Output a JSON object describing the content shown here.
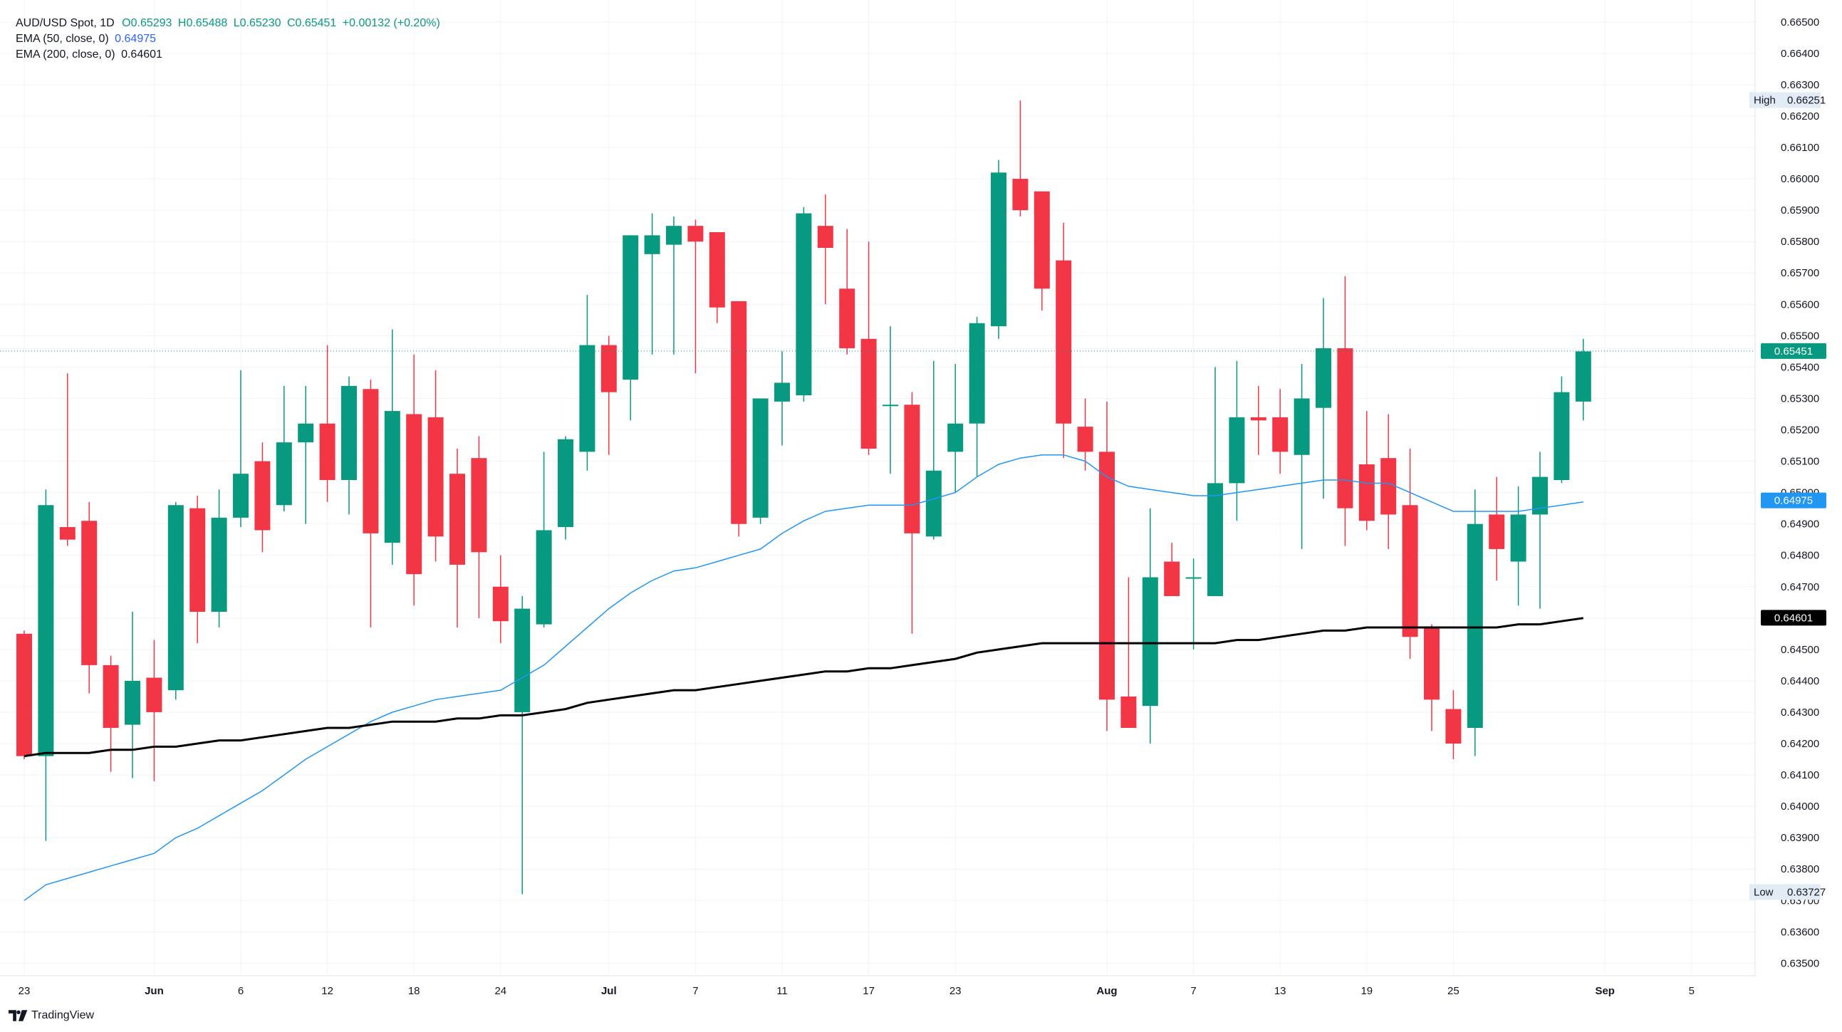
{
  "legend": {
    "symbol": "AUD/USD Spot, 1D",
    "open": "O0.65293",
    "high": "H0.65488",
    "low": "L0.65230",
    "close": "C0.65451",
    "change": "+0.00132 (+0.20%)",
    "ema50_label": "EMA (50, close, 0)",
    "ema50_value": "0.64975",
    "ema200_label": "EMA (200, close, 0)",
    "ema200_value": "0.64601"
  },
  "brand": "TradingView",
  "colors": {
    "up": "#089981",
    "down": "#f23645",
    "ema50": "#2196f3",
    "ema200": "#000000",
    "last_price": "#089981"
  },
  "chart_data": {
    "type": "candlestick",
    "x_tick_labels": [
      "23",
      "Jun",
      "6",
      "12",
      "18",
      "24",
      "Jul",
      "7",
      "11",
      "17",
      "23",
      "Aug",
      "7",
      "13",
      "19",
      "25",
      "Sep",
      "5"
    ],
    "x_tick_index": [
      0,
      6,
      10,
      14,
      18,
      22,
      27,
      31,
      35,
      39,
      43,
      50,
      54,
      58,
      62,
      66,
      73,
      77
    ],
    "y_ticks": [
      "0.66500",
      "0.66400",
      "0.66300",
      "0.66200",
      "0.66100",
      "0.66000",
      "0.65900",
      "0.65800",
      "0.65700",
      "0.65600",
      "0.65500",
      "0.65400",
      "0.65300",
      "0.65200",
      "0.65100",
      "0.65000",
      "0.64900",
      "0.64800",
      "0.64700",
      "0.64600",
      "0.64500",
      "0.64400",
      "0.64300",
      "0.64200",
      "0.64100",
      "0.64000",
      "0.63900",
      "0.63800",
      "0.63700",
      "0.63600",
      "0.63500"
    ],
    "ylim": [
      0.6346,
      0.6657
    ],
    "candles": [
      [
        0.6455,
        0.6456,
        0.6415,
        0.6416
      ],
      [
        0.6416,
        0.6501,
        0.6389,
        0.6496
      ],
      [
        0.6489,
        0.6538,
        0.6483,
        0.6485
      ],
      [
        0.6491,
        0.6497,
        0.6436,
        0.6445
      ],
      [
        0.6445,
        0.6448,
        0.6411,
        0.6425
      ],
      [
        0.6426,
        0.6462,
        0.6409,
        0.644
      ],
      [
        0.6441,
        0.6453,
        0.6408,
        0.643
      ],
      [
        0.6437,
        0.6497,
        0.6434,
        0.6496
      ],
      [
        0.6495,
        0.6499,
        0.6452,
        0.6462
      ],
      [
        0.6462,
        0.6501,
        0.6457,
        0.6492
      ],
      [
        0.6492,
        0.6539,
        0.6489,
        0.6506
      ],
      [
        0.651,
        0.6516,
        0.6481,
        0.6488
      ],
      [
        0.6496,
        0.6534,
        0.6494,
        0.6516
      ],
      [
        0.6516,
        0.6534,
        0.649,
        0.6522
      ],
      [
        0.6522,
        0.6547,
        0.6497,
        0.6504
      ],
      [
        0.6504,
        0.6537,
        0.6493,
        0.6534
      ],
      [
        0.6533,
        0.6536,
        0.6457,
        0.6487
      ],
      [
        0.6484,
        0.6552,
        0.6477,
        0.6526
      ],
      [
        0.6525,
        0.6544,
        0.6464,
        0.6474
      ],
      [
        0.6524,
        0.6539,
        0.6478,
        0.6486
      ],
      [
        0.6506,
        0.6514,
        0.6457,
        0.6477
      ],
      [
        0.6511,
        0.6518,
        0.646,
        0.6481
      ],
      [
        0.647,
        0.648,
        0.6452,
        0.6459
      ],
      [
        0.643,
        0.6467,
        0.6372,
        0.6463
      ],
      [
        0.6458,
        0.6513,
        0.6457,
        0.6488
      ],
      [
        0.6489,
        0.6518,
        0.6485,
        0.6517
      ],
      [
        0.6513,
        0.6563,
        0.6507,
        0.6547
      ],
      [
        0.6547,
        0.655,
        0.6512,
        0.6532
      ],
      [
        0.6536,
        0.6582,
        0.6523,
        0.6582
      ],
      [
        0.6576,
        0.6589,
        0.6544,
        0.6582
      ],
      [
        0.6579,
        0.6588,
        0.6544,
        0.6585
      ],
      [
        0.6585,
        0.6587,
        0.6538,
        0.658
      ],
      [
        0.6583,
        0.6583,
        0.6554,
        0.6559
      ],
      [
        0.6561,
        0.6561,
        0.6486,
        0.649
      ],
      [
        0.6492,
        0.653,
        0.649,
        0.653
      ],
      [
        0.6529,
        0.6545,
        0.6515,
        0.6535
      ],
      [
        0.6531,
        0.6591,
        0.6529,
        0.6589
      ],
      [
        0.6585,
        0.6595,
        0.656,
        0.6578
      ],
      [
        0.6565,
        0.6584,
        0.6544,
        0.6546
      ],
      [
        0.6549,
        0.658,
        0.6512,
        0.6514
      ],
      [
        0.6528,
        0.6553,
        0.6506,
        0.6528
      ],
      [
        0.6528,
        0.6532,
        0.6455,
        0.6487
      ],
      [
        0.6486,
        0.6542,
        0.6485,
        0.6507
      ],
      [
        0.6513,
        0.6541,
        0.65,
        0.6522
      ],
      [
        0.6522,
        0.6556,
        0.6505,
        0.6554
      ],
      [
        0.6553,
        0.6606,
        0.6549,
        0.6602
      ],
      [
        0.66,
        0.6625,
        0.6588,
        0.659
      ],
      [
        0.6596,
        0.6596,
        0.6558,
        0.6565
      ],
      [
        0.6574,
        0.6586,
        0.6511,
        0.6522
      ],
      [
        0.6521,
        0.653,
        0.6507,
        0.6513
      ],
      [
        0.6513,
        0.6529,
        0.6424,
        0.6434
      ],
      [
        0.6435,
        0.6473,
        0.6425,
        0.6425
      ],
      [
        0.6432,
        0.6495,
        0.642,
        0.6473
      ],
      [
        0.6478,
        0.6484,
        0.6467,
        0.6467
      ],
      [
        0.6473,
        0.6479,
        0.645,
        0.6473
      ],
      [
        0.6467,
        0.654,
        0.6467,
        0.6503
      ],
      [
        0.6503,
        0.6542,
        0.6491,
        0.6524
      ],
      [
        0.6524,
        0.6534,
        0.6512,
        0.6523
      ],
      [
        0.6524,
        0.6533,
        0.6506,
        0.6513
      ],
      [
        0.6512,
        0.6541,
        0.6482,
        0.653
      ],
      [
        0.6527,
        0.6562,
        0.6498,
        0.6546
      ],
      [
        0.6546,
        0.6569,
        0.6483,
        0.6495
      ],
      [
        0.6509,
        0.6526,
        0.6488,
        0.6491
      ],
      [
        0.6511,
        0.6525,
        0.6482,
        0.6493
      ],
      [
        0.6496,
        0.6514,
        0.6447,
        0.6454
      ],
      [
        0.6457,
        0.6458,
        0.6424,
        0.6434
      ],
      [
        0.6431,
        0.6437,
        0.6415,
        0.642
      ],
      [
        0.6425,
        0.6501,
        0.6416,
        0.649
      ],
      [
        0.6493,
        0.6505,
        0.6472,
        0.6482
      ],
      [
        0.6478,
        0.6502,
        0.6464,
        0.6493
      ],
      [
        0.6493,
        0.6513,
        0.6463,
        0.6505
      ],
      [
        0.6504,
        0.6537,
        0.6503,
        0.6532
      ],
      [
        0.6529,
        0.6549,
        0.6523,
        0.6545
      ]
    ],
    "ema50": [
      0.637,
      0.6375,
      0.6377,
      0.6379,
      0.6381,
      0.6383,
      0.6385,
      0.639,
      0.6393,
      0.6397,
      0.6401,
      0.6405,
      0.641,
      0.6415,
      0.6419,
      0.6423,
      0.6427,
      0.643,
      0.6432,
      0.6434,
      0.6435,
      0.6436,
      0.6437,
      0.6441,
      0.6445,
      0.6451,
      0.6457,
      0.6463,
      0.6468,
      0.6472,
      0.6475,
      0.6476,
      0.6478,
      0.648,
      0.6482,
      0.6487,
      0.6491,
      0.6494,
      0.6495,
      0.6496,
      0.6496,
      0.6496,
      0.6498,
      0.65,
      0.6505,
      0.6509,
      0.6511,
      0.6512,
      0.6512,
      0.651,
      0.6505,
      0.6502,
      0.6501,
      0.65,
      0.6499,
      0.6499,
      0.65,
      0.6501,
      0.6502,
      0.6503,
      0.6504,
      0.6504,
      0.6503,
      0.6503,
      0.65,
      0.6497,
      0.6494,
      0.6494,
      0.6494,
      0.6494,
      0.6495,
      0.6496,
      0.6497
    ],
    "ema200": [
      0.6416,
      0.6417,
      0.6417,
      0.6417,
      0.6418,
      0.6418,
      0.6419,
      0.6419,
      0.642,
      0.6421,
      0.6421,
      0.6422,
      0.6423,
      0.6424,
      0.6425,
      0.6425,
      0.6426,
      0.6427,
      0.6427,
      0.6427,
      0.6428,
      0.6428,
      0.6429,
      0.6429,
      0.643,
      0.6431,
      0.6433,
      0.6434,
      0.6435,
      0.6436,
      0.6437,
      0.6437,
      0.6438,
      0.6439,
      0.644,
      0.6441,
      0.6442,
      0.6443,
      0.6443,
      0.6444,
      0.6444,
      0.6445,
      0.6446,
      0.6447,
      0.6449,
      0.645,
      0.6451,
      0.6452,
      0.6452,
      0.6452,
      0.6452,
      0.6452,
      0.6452,
      0.6452,
      0.6452,
      0.6452,
      0.6453,
      0.6453,
      0.6454,
      0.6455,
      0.6456,
      0.6456,
      0.6457,
      0.6457,
      0.6457,
      0.6457,
      0.6457,
      0.6457,
      0.6457,
      0.6458,
      0.6458,
      0.6459,
      0.646
    ],
    "last_price": {
      "value": 0.65451,
      "label": "0.65451"
    },
    "ema50_tag": {
      "value": 0.64975,
      "label": "0.64975"
    },
    "ema200_tag": {
      "value": 0.64601,
      "label": "0.64601"
    },
    "high_marker": {
      "text": "High",
      "value": 0.66251,
      "label": "0.66251"
    },
    "low_marker": {
      "text": "Low",
      "value": 0.63727,
      "label": "0.63727"
    }
  }
}
